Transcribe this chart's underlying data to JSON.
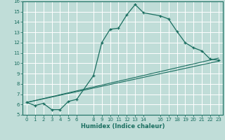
{
  "xlabel": "Humidex (Indice chaleur)",
  "bg_color": "#c0ddd8",
  "grid_color": "#b0d0cc",
  "line_color": "#1a6e60",
  "xlim": [
    -0.5,
    23.5
  ],
  "ylim": [
    5,
    16
  ],
  "xticks": [
    0,
    1,
    2,
    3,
    4,
    5,
    6,
    8,
    9,
    10,
    11,
    12,
    13,
    14,
    16,
    17,
    18,
    19,
    20,
    21,
    22,
    23
  ],
  "yticks": [
    5,
    6,
    7,
    8,
    9,
    10,
    11,
    12,
    13,
    14,
    15,
    16
  ],
  "line1_x": [
    0,
    1,
    2,
    3,
    4,
    5,
    6,
    8,
    9,
    10,
    11,
    12,
    13,
    14,
    16,
    17,
    18,
    19,
    20,
    21,
    22,
    23
  ],
  "line1_y": [
    6.2,
    5.9,
    6.1,
    5.5,
    5.5,
    6.3,
    6.5,
    8.8,
    12.0,
    13.3,
    13.4,
    14.7,
    15.7,
    14.9,
    14.6,
    14.3,
    13.1,
    12.0,
    11.5,
    11.2,
    10.4,
    10.3
  ],
  "line2_x": [
    0,
    23
  ],
  "line2_y": [
    6.2,
    10.5
  ],
  "line3_x": [
    0,
    23
  ],
  "line3_y": [
    6.2,
    10.2
  ],
  "xlabel_fontsize": 6,
  "tick_fontsize": 5
}
